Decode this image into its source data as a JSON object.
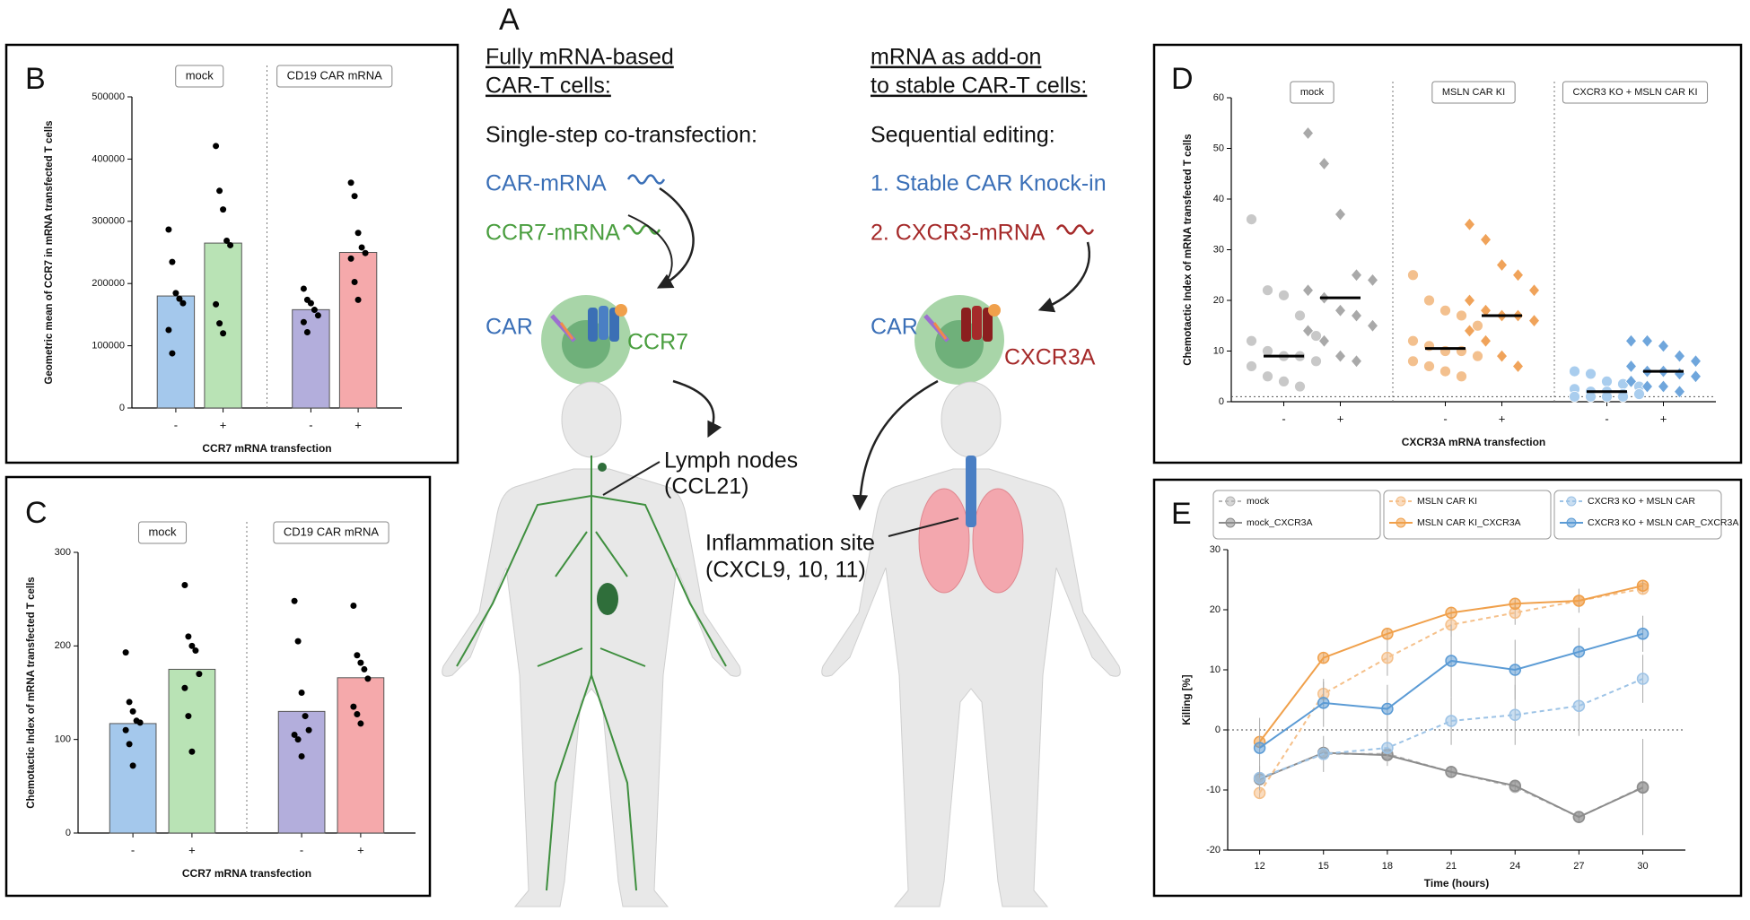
{
  "chart_data": [
    {
      "type": "bar",
      "label": "B",
      "ylabel": "Geometric mean of CCR7 in mRNA transfected T cells",
      "xlabel": "CCR7 mRNA transfection",
      "groups": [
        "mock",
        "CD19 CAR mRNA"
      ],
      "categories": [
        "-",
        "+",
        "-",
        "+"
      ],
      "values": [
        180000,
        265000,
        158000,
        250000
      ],
      "colors": [
        "#a4c8ec",
        "#b9e3b5",
        "#b3aedc",
        "#f5a9ab"
      ],
      "points": [
        [
          286700,
          234700,
          184600,
          175600,
          168400,
          125400,
          87800
        ],
        [
          421000,
          349000,
          319000,
          268800,
          261600,
          166600,
          136000,
          120000
        ],
        [
          191700,
          173800,
          168400,
          157700,
          148700,
          138000,
          121800
        ],
        [
          362000,
          340500,
          281300,
          258000,
          249000,
          240100,
          202500,
          173800
        ]
      ],
      "ylim": [
        0,
        500000
      ],
      "yticks": [
        0,
        100000,
        200000,
        300000,
        400000,
        500000
      ]
    },
    {
      "type": "bar",
      "label": "C",
      "ylabel": "Chemotactic Index of mRNA transfected T cells",
      "xlabel": "CCR7 mRNA transfection",
      "groups": [
        "mock",
        "CD19 CAR mRNA"
      ],
      "categories": [
        "-",
        "+",
        "-",
        "+"
      ],
      "values": [
        117,
        175,
        130,
        166
      ],
      "colors": [
        "#a4c8ec",
        "#b9e3b5",
        "#b3aedc",
        "#f5a9ab"
      ],
      "points": [
        [
          193,
          140,
          130,
          120,
          118,
          110,
          95,
          72
        ],
        [
          265,
          210,
          200,
          195,
          170,
          155,
          125,
          87
        ],
        [
          248,
          205,
          150,
          125,
          110,
          105,
          100,
          82
        ],
        [
          243,
          190,
          182,
          175,
          165,
          135,
          127,
          117
        ]
      ],
      "ylim": [
        0,
        300
      ],
      "yticks": [
        0,
        100,
        200,
        300
      ]
    },
    {
      "type": "dotplot",
      "label": "D",
      "ylabel": "Chemotactic Index of mRNA transfected T cells",
      "xlabel": "CXCR3A mRNA transfection",
      "groups": [
        "mock",
        "MSLN CAR KI",
        "CXCR3 KO + MSLN CAR KI"
      ],
      "categories": [
        "-",
        "+",
        "-",
        "+",
        "-",
        "+"
      ],
      "values": [
        9,
        20.5,
        10.5,
        17,
        2,
        6
      ],
      "colors": [
        "#c8c8c8",
        "#a9a9a9",
        "#f3c08e",
        "#f0a35a",
        "#a9cdee",
        "#6fa6dc"
      ],
      "markers": [
        "circle",
        "diamond",
        "circle",
        "diamond",
        "circle",
        "diamond"
      ],
      "points": [
        [
          36,
          22,
          21,
          17,
          13,
          12,
          10,
          9,
          9,
          8,
          7,
          5,
          4,
          3
        ],
        [
          53,
          47,
          37,
          25,
          24,
          22,
          20.5,
          18,
          17,
          15,
          14,
          12,
          9,
          8
        ],
        [
          25,
          20,
          18,
          17,
          15,
          12,
          11,
          10,
          10,
          9,
          8,
          7,
          6,
          5
        ],
        [
          35,
          32,
          27,
          25,
          22,
          20,
          18,
          17,
          17,
          16,
          14,
          12,
          9,
          7
        ],
        [
          6,
          5.5,
          4,
          3.5,
          3,
          2.5,
          2,
          2,
          1.5,
          1.5,
          1,
          1,
          1,
          1
        ],
        [
          12,
          12,
          11,
          9,
          8,
          7,
          6,
          6,
          5.5,
          5,
          4,
          3,
          3,
          2
        ]
      ],
      "reference_line": 1,
      "ylim": [
        0,
        60
      ],
      "yticks": [
        0,
        10,
        20,
        30,
        40,
        50,
        60
      ]
    },
    {
      "type": "line",
      "label": "E",
      "ylabel": "Killing [%]",
      "xlabel": "Time (hours)",
      "x": [
        12,
        15,
        18,
        21,
        24,
        27,
        30
      ],
      "xlim": [
        10.5,
        32
      ],
      "xticks": [
        12,
        15,
        18,
        21,
        24,
        27,
        30
      ],
      "ylim": [
        -20,
        30
      ],
      "yticks": [
        -20,
        -10,
        0,
        10,
        20,
        30
      ],
      "reference_line": 0,
      "series": [
        {
          "name": "mock",
          "color": "#b5b5b5",
          "dashed": true,
          "values": [
            -8,
            -4,
            -4,
            -7,
            -9.5,
            -14.5,
            -9.5
          ],
          "errors": [
            1,
            1,
            1,
            1,
            1,
            1,
            8
          ]
        },
        {
          "name": "mock_CXCR3A",
          "color": "#8c8c8c",
          "dashed": false,
          "values": [
            -8.2,
            -3.8,
            -4.2,
            -7,
            -9.3,
            -14.5,
            -9.6
          ],
          "errors": [
            1,
            1,
            1,
            1,
            1,
            1,
            1
          ]
        },
        {
          "name": "MSLN CAR KI",
          "color": "#f5c08a",
          "dashed": true,
          "values": [
            -10.5,
            6,
            12,
            17.5,
            19.5,
            21.5,
            23.5
          ],
          "errors": [
            1,
            2,
            3,
            2,
            2,
            2,
            1
          ]
        },
        {
          "name": "MSLN CAR KI_CXCR3A",
          "color": "#f0a04b",
          "dashed": false,
          "values": [
            -2,
            12,
            16,
            19.5,
            21,
            21.5,
            24
          ],
          "errors": [
            1,
            1,
            1,
            1,
            1,
            1,
            1
          ]
        },
        {
          "name": "CXCR3 KO + MSLN CAR",
          "color": "#9dc3e6",
          "dashed": true,
          "values": [
            -8,
            -4,
            -3,
            1.5,
            2.5,
            4,
            8.5
          ],
          "errors": [
            2,
            3,
            3,
            4,
            5,
            5,
            4
          ]
        },
        {
          "name": "CXCR3 KO + MSLN CAR_CXCR3A",
          "color": "#5b9bd5",
          "dashed": false,
          "values": [
            -3,
            4.5,
            3.5,
            11.5,
            10,
            13,
            16
          ],
          "errors": [
            5,
            4,
            4,
            6,
            5,
            4,
            3
          ]
        }
      ]
    }
  ],
  "diagram": {
    "label": "A",
    "left": {
      "title": [
        "Fully mRNA-based",
        "CAR-T cells:"
      ],
      "method": "Single-step co-transfection:",
      "items": [
        "CAR-mRNA",
        "CCR7-mRNA"
      ],
      "cell_labels": [
        "CAR",
        "CCR7"
      ],
      "target": [
        "Lymph nodes",
        "(CCL21)"
      ]
    },
    "right": {
      "title": [
        "mRNA as add-on",
        "to stable CAR-T cells:"
      ],
      "method": "Sequential editing:",
      "items": [
        "1.  Stable CAR Knock-in",
        "2.  CXCR3-mRNA"
      ],
      "cell_labels": [
        "CAR",
        "CXCR3A"
      ],
      "target": [
        "Inflammation site",
        "(CXCL9, 10, 11)"
      ]
    }
  }
}
